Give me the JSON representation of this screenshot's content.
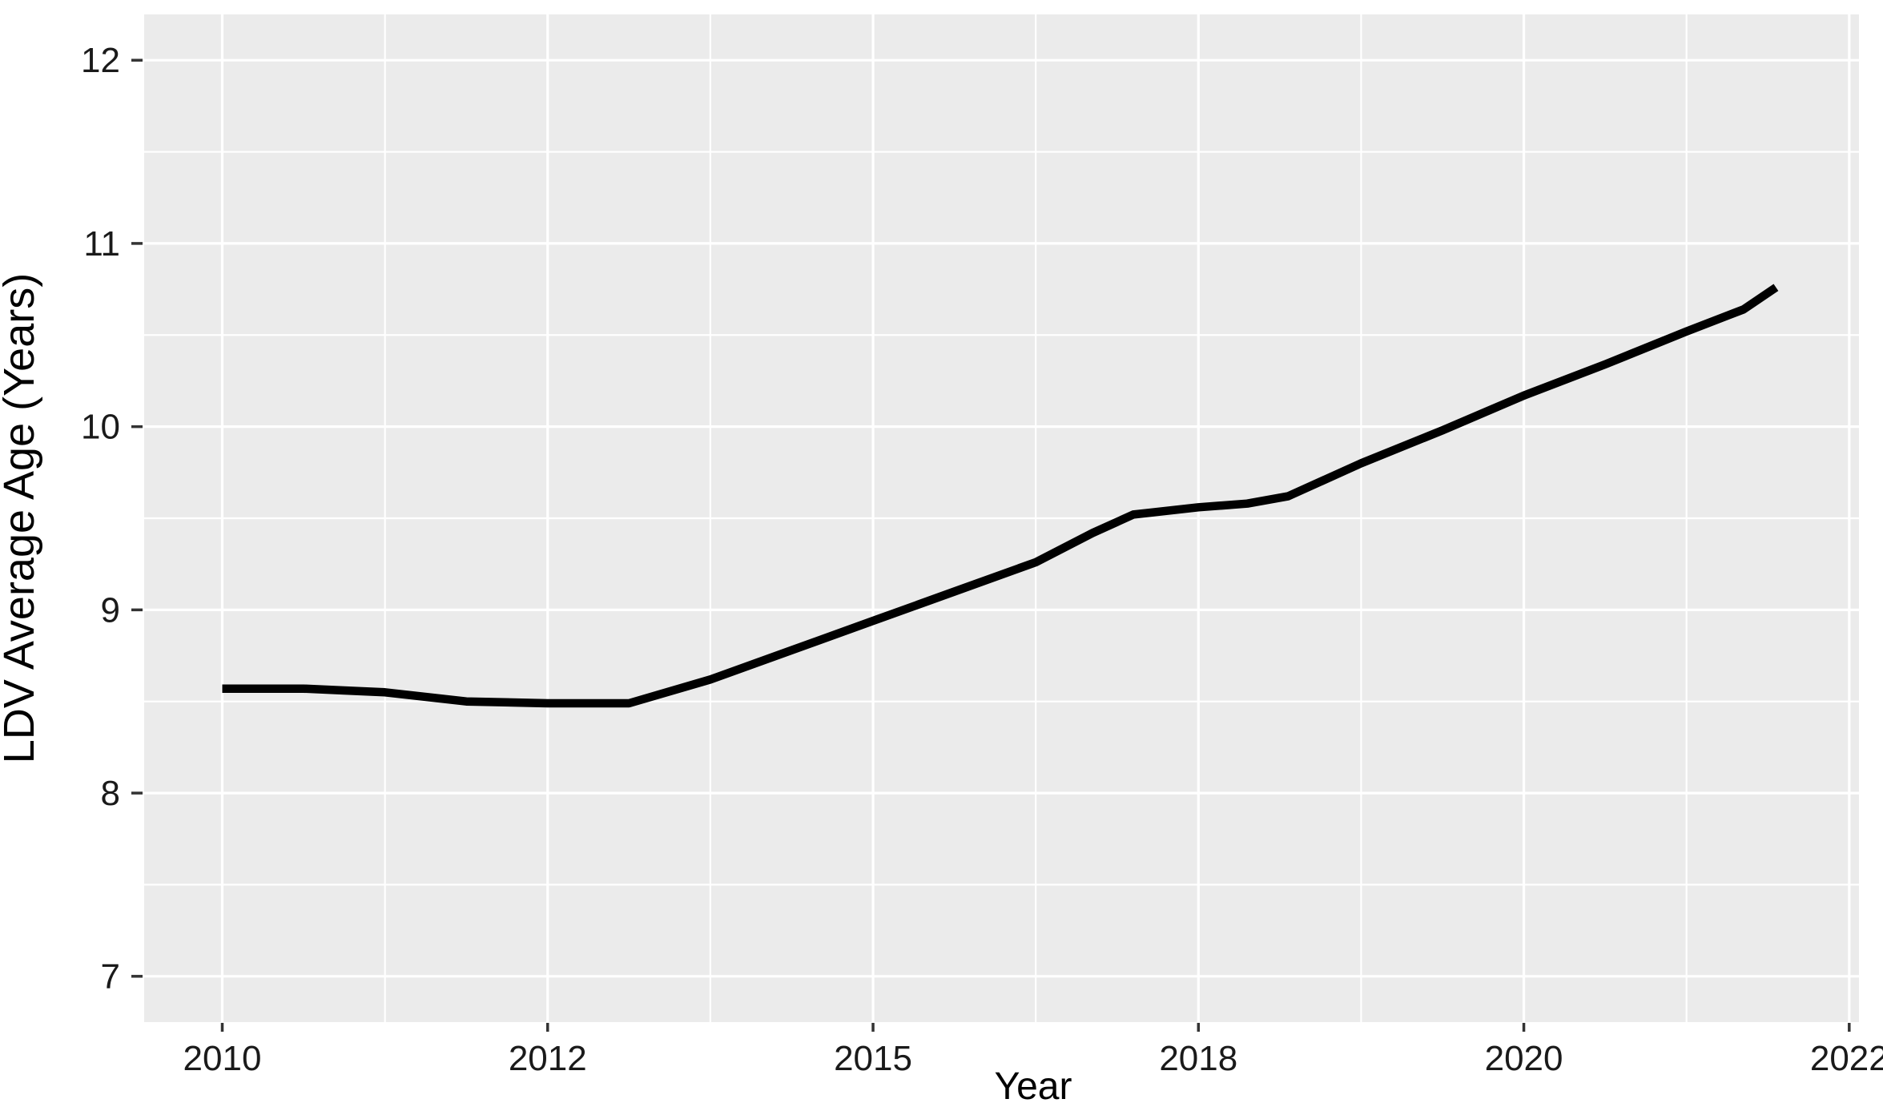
{
  "chart_data": {
    "type": "line",
    "title": "",
    "xlabel": "Year",
    "ylabel": "LDV Average Age (Years)",
    "x_axis": {
      "tick_labels": [
        "2010",
        "2012",
        "2015",
        "2018",
        "2020",
        "2022"
      ],
      "tick_positions": [
        0,
        4,
        8,
        12,
        16,
        20
      ],
      "minor_grid_positions": [
        2,
        6,
        10,
        14,
        18
      ],
      "range": [
        -0.96,
        20.12
      ]
    },
    "y_axis": {
      "tick_labels": [
        "7",
        "8",
        "9",
        "10",
        "11",
        "12"
      ],
      "tick_values": [
        7,
        8,
        9,
        10,
        11,
        12
      ],
      "minor_grid_values": [
        7.5,
        8.5,
        9.5,
        10.5,
        11.5
      ],
      "range": [
        6.75,
        12.25
      ]
    },
    "grid": true,
    "legend": false,
    "panel_background": "#ebebeb",
    "grid_color": "#ffffff",
    "major_grid_width": 3.2,
    "minor_grid_width": 2.2,
    "tick_mark_color": "#333333",
    "series": [
      {
        "name": "LDV Average Age",
        "color": "#000000",
        "stroke_width": 10.5,
        "points": [
          [
            0,
            8.57
          ],
          [
            1,
            8.57
          ],
          [
            1.5,
            8.56
          ],
          [
            2,
            8.55
          ],
          [
            3,
            8.5
          ],
          [
            4,
            8.49
          ],
          [
            5,
            8.49
          ],
          [
            6,
            8.62
          ],
          [
            7,
            8.78
          ],
          [
            8,
            8.94
          ],
          [
            9,
            9.1
          ],
          [
            10,
            9.26
          ],
          [
            10.7,
            9.42
          ],
          [
            11.2,
            9.52
          ],
          [
            12,
            9.56
          ],
          [
            12.6,
            9.58
          ],
          [
            13.1,
            9.62
          ],
          [
            14,
            9.8
          ],
          [
            15,
            9.98
          ],
          [
            16,
            10.17
          ],
          [
            17,
            10.34
          ],
          [
            18,
            10.52
          ],
          [
            18.7,
            10.64
          ],
          [
            19.1,
            10.76
          ]
        ]
      }
    ],
    "values_at_labeled_ticks": {
      "2010": 8.57,
      "2012": 8.49,
      "2015": 8.94,
      "2018": 9.56,
      "2020": 10.17
    },
    "end_of_line": {
      "position": 19.1,
      "value": 10.76
    }
  }
}
